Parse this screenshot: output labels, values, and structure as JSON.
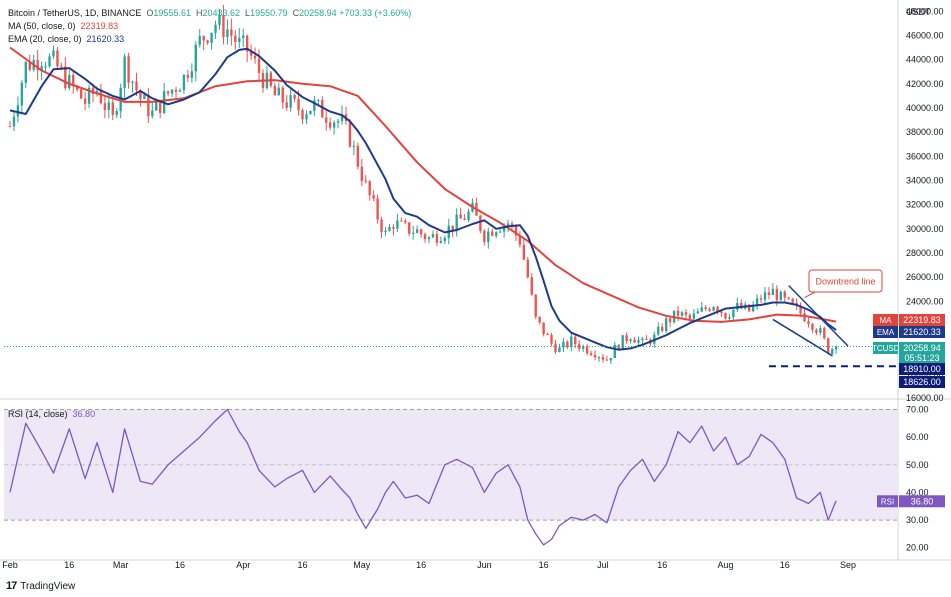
{
  "header": {
    "symbol": "Bitcoin / TetherUS, 1D, BINANCE",
    "o_label": "O",
    "o": "19555.61",
    "h_label": "H",
    "h": "20433.62",
    "l_label": "L",
    "l": "19550.79",
    "c_label": "C",
    "c": "20258.94",
    "change": "+703.33 (+3.60%)",
    "ma_label": "MA (50, close, 0)",
    "ma_value": "22319.83",
    "ema_label": "EMA (20, close, 0)",
    "ema_value": "21620.33",
    "rsi_label": "RSI (14, close)",
    "rsi_value": "36.80"
  },
  "currency": "USDT",
  "brand": "TradingView",
  "colors": {
    "up": "#26a69a",
    "down": "#ef5350",
    "ma": "#e0443c",
    "ema": "#1e3a8a",
    "rsi": "#7e57c2",
    "rsi_band": "#ede7f6",
    "dashed": "#0d1d7a"
  },
  "chart_data": {
    "type": "line",
    "title": "Bitcoin / TetherUS, 1D, BINANCE",
    "annotation": "Downtrend line",
    "price_axis": {
      "ylim": [
        16000,
        48600
      ],
      "ticks": [
        "16000.00",
        "18000.00",
        "20000.00",
        "22000.00",
        "24000.00",
        "26000.00",
        "28000.00",
        "30000.00",
        "32000.00",
        "34000.00",
        "36000.00",
        "38000.00",
        "40000.00",
        "42000.00",
        "44000.00",
        "46000.00",
        "48000.00"
      ]
    },
    "time_axis": {
      "labels": [
        "Feb",
        "16",
        "Mar",
        "16",
        "Apr",
        "16",
        "May",
        "16",
        "Jun",
        "16",
        "Jul",
        "16",
        "Aug",
        "16",
        "Sep"
      ],
      "label_days": [
        0,
        15,
        28,
        43,
        59,
        74,
        89,
        104,
        120,
        135,
        150,
        165,
        181,
        196,
        212
      ]
    },
    "rsi_axis": {
      "ylim": [
        17,
        72
      ],
      "ticks": [
        "20.00",
        "30.00",
        "40.00",
        "50.00",
        "60.00",
        "70.00"
      ],
      "band": [
        30,
        70
      ],
      "midline": 50
    },
    "price_tags": [
      {
        "name": "MA",
        "value": "22319.83",
        "y": 22319.83,
        "color": "#e0443c"
      },
      {
        "name": "EMA",
        "value": "21620.33",
        "y": 21620.33,
        "color": "#1e3a8a"
      },
      {
        "name": "BTCUSDT",
        "value": "20258.94",
        "sub": "05:51:23",
        "y": 20258.94,
        "color": "#26a69a"
      },
      {
        "name": "level1",
        "value": "18910.00",
        "y": 18910,
        "color": "#0d1d7a"
      },
      {
        "name": "level2",
        "value": "18626.00",
        "y": 18626,
        "color": "#0d1d7a"
      }
    ],
    "rsi_tag": {
      "name": "RSI",
      "value": "36.80",
      "y": 36.8
    },
    "support_level": 18626,
    "downtrend_line": {
      "x": [
        197,
        212
      ],
      "y": [
        25300,
        20300
      ]
    },
    "channel_lower": {
      "x": [
        193,
        208
      ],
      "y": [
        22500,
        19500
      ]
    },
    "close_series": {
      "x": [
        0,
        4,
        8,
        11,
        15,
        19,
        22,
        26,
        29,
        33,
        36,
        40,
        44,
        48,
        52,
        55,
        58,
        60,
        63,
        67,
        70,
        74,
        77,
        81,
        84,
        86,
        88,
        90,
        93,
        95,
        97,
        100,
        103,
        106,
        110,
        113,
        117,
        120,
        123,
        126,
        129,
        131,
        133,
        135,
        137,
        139,
        142,
        145,
        148,
        151,
        154,
        157,
        160,
        163,
        166,
        169,
        172,
        175,
        178,
        181,
        184,
        187,
        190,
        193,
        196,
        199,
        202,
        205,
        207,
        209
      ],
      "y": [
        38500,
        43500,
        44200,
        43800,
        42000,
        40500,
        41500,
        39000,
        43800,
        40800,
        39500,
        41200,
        42500,
        45500,
        47000,
        46500,
        45200,
        44800,
        43000,
        41000,
        40500,
        39800,
        40200,
        39200,
        38800,
        37500,
        35500,
        33500,
        31000,
        29500,
        30500,
        30000,
        29800,
        29200,
        29800,
        30500,
        31500,
        29500,
        30200,
        30500,
        29000,
        26000,
        22500,
        21500,
        20500,
        20000,
        20700,
        20200,
        19800,
        19200,
        20500,
        21200,
        20500,
        21000,
        22300,
        23000,
        22500,
        23200,
        23800,
        22900,
        23500,
        23200,
        24300,
        24800,
        24000,
        23300,
        22500,
        21400,
        20000,
        20259
      ]
    },
    "ma_series": {
      "x": [
        0,
        8,
        15,
        22,
        29,
        36,
        44,
        52,
        60,
        67,
        74,
        81,
        88,
        95,
        103,
        110,
        117,
        124,
        131,
        138,
        145,
        152,
        159,
        166,
        173,
        180,
        187,
        194,
        201,
        206,
        209
      ],
      "y": [
        45000,
        43100,
        42000,
        41200,
        40500,
        40500,
        40800,
        41800,
        42200,
        42300,
        42000,
        41800,
        41000,
        38500,
        35500,
        33300,
        31800,
        30500,
        29000,
        27000,
        25500,
        24500,
        23500,
        22800,
        22400,
        22300,
        22500,
        22900,
        22800,
        22500,
        22320
      ]
    },
    "ema_series": {
      "x": [
        0,
        4,
        8,
        11,
        15,
        19,
        22,
        26,
        29,
        33,
        36,
        40,
        44,
        48,
        52,
        55,
        58,
        60,
        63,
        67,
        70,
        74,
        77,
        81,
        84,
        86,
        88,
        90,
        93,
        95,
        97,
        100,
        103,
        106,
        110,
        113,
        117,
        120,
        123,
        126,
        129,
        131,
        133,
        135,
        137,
        139,
        142,
        145,
        148,
        151,
        154,
        157,
        160,
        163,
        166,
        169,
        172,
        175,
        178,
        181,
        184,
        187,
        190,
        193,
        196,
        199,
        202,
        205,
        207,
        209
      ],
      "y": [
        39800,
        39500,
        41800,
        43200,
        43300,
        42400,
        41600,
        41000,
        40700,
        41400,
        40800,
        40300,
        40700,
        41300,
        42800,
        44200,
        44800,
        44900,
        44300,
        43100,
        41900,
        40900,
        40400,
        39700,
        39400,
        38900,
        38100,
        37100,
        35300,
        34100,
        32500,
        31300,
        31000,
        30300,
        29700,
        29900,
        30400,
        30700,
        30000,
        30200,
        30300,
        29400,
        27700,
        25700,
        23600,
        22400,
        21400,
        21000,
        20600,
        20200,
        20000,
        20100,
        20400,
        20800,
        21200,
        21700,
        22200,
        22600,
        23000,
        23400,
        23500,
        23600,
        23700,
        23900,
        23900,
        23700,
        23300,
        22700,
        22100,
        21620
      ]
    },
    "rsi_series": {
      "x": [
        0,
        4,
        8,
        11,
        15,
        19,
        22,
        26,
        29,
        33,
        36,
        40,
        44,
        48,
        52,
        55,
        58,
        60,
        63,
        67,
        70,
        74,
        77,
        81,
        84,
        86,
        88,
        90,
        93,
        95,
        97,
        100,
        103,
        106,
        110,
        113,
        117,
        120,
        123,
        126,
        129,
        131,
        133,
        135,
        137,
        139,
        142,
        145,
        148,
        151,
        154,
        157,
        160,
        163,
        166,
        169,
        172,
        175,
        178,
        181,
        184,
        187,
        190,
        193,
        196,
        199,
        202,
        205,
        207,
        209
      ],
      "y": [
        40,
        65,
        55,
        47,
        63,
        45,
        58,
        40,
        63,
        44,
        43,
        50,
        55,
        60,
        66,
        70,
        62,
        58,
        48,
        42,
        45,
        48,
        40,
        46,
        41,
        38,
        32,
        27,
        34,
        40,
        44,
        38,
        39,
        36,
        50,
        52,
        49,
        40,
        47,
        50,
        42,
        30,
        25,
        21,
        23,
        28,
        31,
        30,
        32,
        29,
        42,
        48,
        52,
        44,
        50,
        62,
        58,
        64,
        55,
        60,
        50,
        53,
        61,
        58,
        52,
        38,
        36,
        40,
        30,
        37
      ]
    }
  }
}
